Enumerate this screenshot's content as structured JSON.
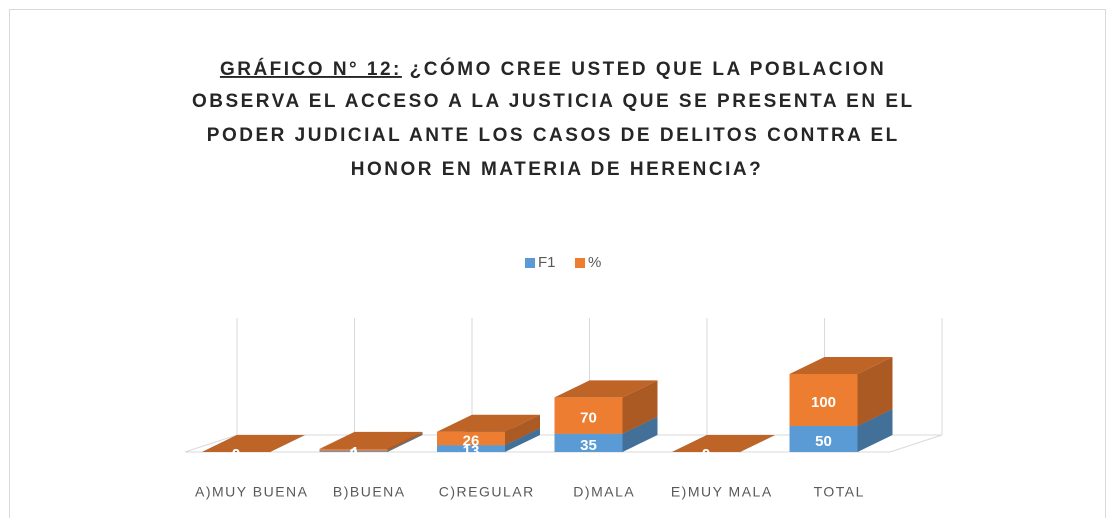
{
  "chart_data": {
    "type": "bar3d_stacked",
    "title": [
      "GRÁFICO N° 12:",
      "¿CÓMO CREE USTED QUE LA POBLACION",
      "OBSERVA EL ACCESO A LA JUSTICIA QUE SE PRESENTA EN EL",
      "PODER JUDICIAL ANTE LOS CASOS DE DELITOS CONTRA EL",
      "HONOR EN MATERIA DE HERENCIA?"
    ],
    "categories": [
      "A)MUY BUENA",
      "B)BUENA",
      "C)REGULAR",
      "D)MALA",
      "E)MUY MALA",
      "TOTAL"
    ],
    "series": [
      {
        "name": "F1",
        "color": "#5b9bd5",
        "values": [
          0,
          2,
          13,
          35,
          0,
          50
        ]
      },
      {
        "name": "%",
        "color": "#ed7d31",
        "values": [
          0,
          4,
          26,
          70,
          0,
          100
        ]
      }
    ],
    "ylim": [
      0,
      225
    ],
    "legend": "top"
  }
}
